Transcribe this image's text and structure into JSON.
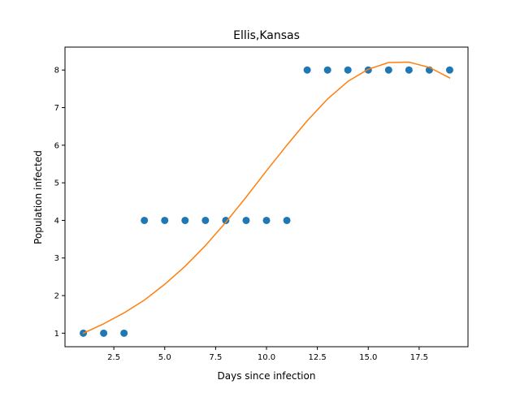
{
  "chart_data": {
    "type": "scatter",
    "title": "Ellis,Kansas",
    "xlabel": "Days since infection",
    "ylabel": "Population infected",
    "xlim": [
      0.1,
      19.9
    ],
    "ylim": [
      0.64,
      8.61
    ],
    "x_ticks": [
      2.5,
      5.0,
      7.5,
      10.0,
      12.5,
      15.0,
      17.5
    ],
    "x_tick_labels": [
      "2.5",
      "5.0",
      "7.5",
      "10.0",
      "12.5",
      "15.0",
      "17.5"
    ],
    "y_ticks": [
      1,
      2,
      3,
      4,
      5,
      6,
      7,
      8
    ],
    "y_tick_labels": [
      "1",
      "2",
      "3",
      "4",
      "5",
      "6",
      "7",
      "8"
    ],
    "grid": false,
    "series": [
      {
        "kind": "scatter",
        "color": "#1f77b4",
        "x": [
          1,
          2,
          3,
          4,
          5,
          6,
          7,
          8,
          9,
          10,
          11,
          12,
          13,
          14,
          15,
          16,
          17,
          18,
          19
        ],
        "y": [
          1,
          1,
          1,
          4,
          4,
          4,
          4,
          4,
          4,
          4,
          4,
          8,
          8,
          8,
          8,
          8,
          8,
          8,
          8
        ]
      },
      {
        "kind": "line",
        "color": "#ff7f0e",
        "x": [
          1,
          2,
          3,
          4,
          5,
          6,
          7,
          8,
          9,
          10,
          11,
          12,
          13,
          14,
          15,
          16,
          17,
          18,
          19
        ],
        "y": [
          1.0,
          1.25,
          1.54,
          1.88,
          2.3,
          2.78,
          3.33,
          3.95,
          4.62,
          5.32,
          6.0,
          6.65,
          7.23,
          7.7,
          8.02,
          8.2,
          8.21,
          8.07,
          7.79
        ]
      }
    ]
  }
}
